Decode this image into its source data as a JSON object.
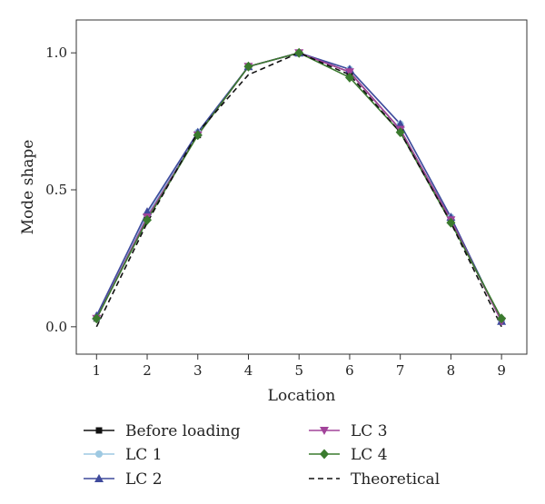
{
  "chart_data": {
    "type": "line",
    "xlabel": "Location",
    "ylabel": "Mode shape",
    "xlim": [
      0.6,
      9.5
    ],
    "ylim": [
      -0.1,
      1.12
    ],
    "x_ticks": [
      1,
      2,
      3,
      4,
      5,
      6,
      7,
      8,
      9
    ],
    "y_ticks": [
      0.0,
      0.5,
      1.0
    ],
    "y_tick_labels": [
      "0.0",
      "0.5",
      "1.0"
    ],
    "grid": false,
    "legend_position": "bottom",
    "x": [
      1,
      2,
      3,
      4,
      5,
      6,
      7,
      8,
      9
    ],
    "series": [
      {
        "name": "Before loading",
        "color": "#111111",
        "marker": "square",
        "dash": "solid",
        "values": [
          0.03,
          0.4,
          0.7,
          0.95,
          1.0,
          0.93,
          0.72,
          0.39,
          0.02
        ]
      },
      {
        "name": "LC 1",
        "color": "#9ec9e2",
        "marker": "circle",
        "dash": "solid",
        "values": [
          0.03,
          0.41,
          0.71,
          0.95,
          1.0,
          0.94,
          0.74,
          0.4,
          0.02
        ]
      },
      {
        "name": "LC 2",
        "color": "#3f4a9c",
        "marker": "triangle-up",
        "dash": "solid",
        "values": [
          0.04,
          0.42,
          0.71,
          0.95,
          1.0,
          0.94,
          0.74,
          0.4,
          0.02
        ]
      },
      {
        "name": "LC 3",
        "color": "#a2439a",
        "marker": "triangle-down",
        "dash": "solid",
        "values": [
          0.03,
          0.4,
          0.7,
          0.95,
          1.0,
          0.93,
          0.72,
          0.39,
          0.02
        ]
      },
      {
        "name": "LC 4",
        "color": "#3a7a2e",
        "marker": "diamond",
        "dash": "solid",
        "values": [
          0.03,
          0.39,
          0.7,
          0.95,
          1.0,
          0.91,
          0.71,
          0.38,
          0.03
        ]
      },
      {
        "name": "Theoretical",
        "color": "#111111",
        "marker": "none",
        "dash": "dashed",
        "values": [
          0.0,
          0.38,
          0.71,
          0.92,
          1.0,
          0.92,
          0.71,
          0.38,
          0.0
        ]
      }
    ]
  }
}
